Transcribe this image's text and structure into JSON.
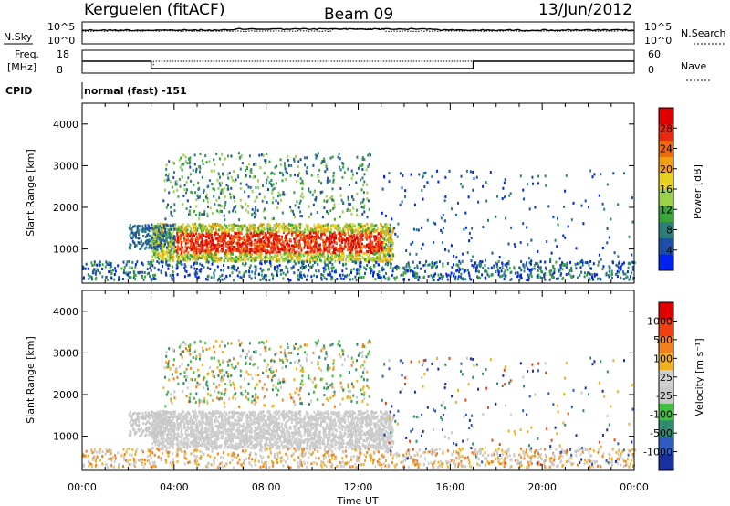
{
  "header": {
    "station": "Kerguelen (fitACF)",
    "beam": "Beam 09",
    "date": "13/Jun/2012"
  },
  "params": {
    "nsky_label": "N.Sky",
    "nsearch_label": "N.Search",
    "nsky_ticks": [
      "10^5",
      "10^0"
    ],
    "nsearch_ticks": [
      "10^5",
      "10^0"
    ],
    "freq_label_line1": "Freq.",
    "freq_label_line2": "[MHz]",
    "freq_ticks": [
      "18",
      "8"
    ],
    "nave_label": "Nave",
    "nave_ticks": [
      "60",
      "0"
    ],
    "cpid_label": "CPID",
    "cpid_text": "normal (fast) -151"
  },
  "chart_data": [
    {
      "type": "heatmap",
      "panel": "power",
      "ylabel": "Slant Range [km]",
      "xlabel": "",
      "ylim": [
        180,
        4500
      ],
      "yticks": [
        "1000",
        "2000",
        "3000",
        "4000"
      ],
      "xlim": [
        0,
        24
      ],
      "colorbar": {
        "label": "Power [dB]",
        "ticks": [
          "4",
          "8",
          "12",
          "16",
          "20",
          "24",
          "28"
        ],
        "colors": [
          "#0022ee",
          "#1e4fa8",
          "#2d7f7a",
          "#3aa63a",
          "#9ad34a",
          "#e8d020",
          "#f4a014",
          "#f06a10",
          "#e82a10",
          "#e00000"
        ]
      }
    },
    {
      "type": "heatmap",
      "panel": "velocity",
      "ylabel": "Slant Range [km]",
      "xlabel": "Time UT",
      "ylim": [
        180,
        4500
      ],
      "yticks": [
        "1000",
        "2000",
        "3000",
        "4000"
      ],
      "xlim": [
        0,
        24
      ],
      "xticks": [
        "00:00",
        "04:00",
        "08:00",
        "12:00",
        "16:00",
        "20:00",
        "00:00"
      ],
      "colorbar": {
        "label": "Velocity  [m s⁻¹]",
        "ticks": [
          "1000",
          "500",
          "100",
          "25",
          "-25",
          "-100",
          "-500",
          "-1000"
        ],
        "colors": [
          "#1a2fa0",
          "#2e5cc0",
          "#2e8a70",
          "#40c040",
          "#c8c8c8",
          "#d0d0d0",
          "#f0b020",
          "#f08020",
          "#f04010",
          "#e00000"
        ]
      }
    }
  ]
}
